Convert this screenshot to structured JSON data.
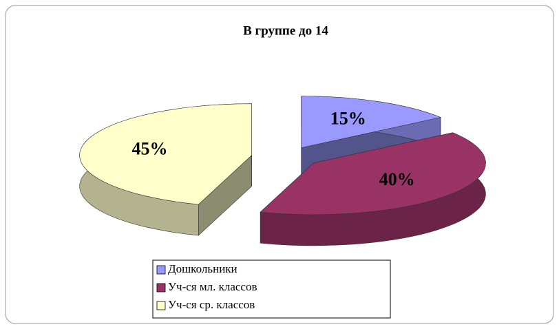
{
  "chart_data": {
    "type": "pie3d",
    "title": "В группе до 14",
    "categories": [
      "Дошкольники",
      "Уч-ся мл. классов",
      "Уч-ся ср. классов"
    ],
    "values": [
      15,
      40,
      45
    ],
    "value_labels": [
      "15%",
      "40%",
      "45%"
    ],
    "colors": [
      "#9999ff",
      "#993366",
      "#ffffcc"
    ],
    "legend": "bottom"
  }
}
